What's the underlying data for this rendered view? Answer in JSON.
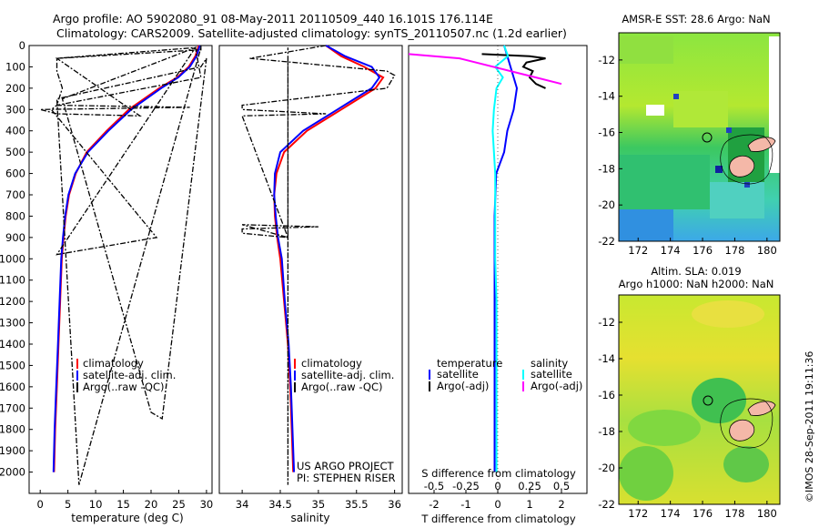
{
  "header": {
    "line1": "Argo profile: AO 5902080_91 08-May-2011 20110509_440 16.101S 176.114E",
    "line2": "Climatology: CARS2009. Satellite-adjusted climatology: synTS_20110507.nc (1.2d earlier)"
  },
  "colors": {
    "climatology": "#ff0000",
    "satellite": "#0000ff",
    "argo": "#000000",
    "s_satellite": "#00ffff",
    "s_argo": "#ff00ff",
    "land": "#f4b8a8"
  },
  "chart_data": [
    {
      "id": "temperature",
      "type": "line",
      "xlabel": "temperature (deg C)",
      "ylabel": "",
      "xlim": [
        -2,
        31
      ],
      "ylim": [
        2100,
        0
      ],
      "xticks": [
        0,
        5,
        10,
        15,
        20,
        25,
        30
      ],
      "yticks": [
        0,
        100,
        200,
        300,
        400,
        500,
        600,
        700,
        800,
        900,
        1000,
        1100,
        1200,
        1300,
        1400,
        1500,
        1600,
        1700,
        1800,
        1900,
        2000
      ],
      "legend": [
        "climatology",
        "satellite-adj. clim.",
        "Argo(..raw -QC)"
      ],
      "series": [
        {
          "name": "climatology",
          "depth": [
            0,
            50,
            100,
            150,
            200,
            300,
            400,
            500,
            600,
            700,
            800,
            900,
            1000,
            1200,
            1400,
            1600,
            1800,
            2000
          ],
          "values": [
            28.6,
            28.0,
            26.8,
            24.7,
            21.5,
            16.0,
            12.0,
            8.4,
            6.4,
            5.2,
            4.6,
            4.2,
            3.9,
            3.6,
            3.3,
            3.0,
            2.7,
            2.5
          ]
        },
        {
          "name": "satellite-adj. clim.",
          "depth": [
            0,
            50,
            100,
            150,
            200,
            300,
            400,
            500,
            600,
            700,
            800,
            900,
            1000,
            1200,
            1400,
            1600,
            1800,
            2000
          ],
          "values": [
            28.8,
            28.2,
            27.0,
            24.9,
            21.8,
            16.4,
            12.3,
            8.6,
            6.3,
            5.1,
            4.5,
            4.1,
            3.8,
            3.5,
            3.2,
            2.9,
            2.6,
            2.4
          ]
        },
        {
          "name": "Argo(..raw -QC)",
          "depth": [
            0,
            20,
            60,
            120,
            200,
            280,
            290,
            300,
            320,
            330,
            60,
            10,
            150,
            280,
            300,
            900,
            980,
            10,
            250,
            1720,
            1750,
            60,
            100,
            250,
            2060,
            10
          ],
          "values": [
            29,
            29,
            3,
            3,
            4,
            3,
            27,
            0,
            3,
            18,
            3,
            28,
            29,
            3,
            2,
            21,
            3,
            28,
            4,
            20,
            22,
            30,
            29,
            3,
            7,
            29
          ]
        }
      ]
    },
    {
      "id": "salinity",
      "type": "line",
      "xlabel": "salinity",
      "xlim": [
        33.7,
        36.1
      ],
      "ylim": [
        2100,
        0
      ],
      "xticks": [
        34,
        34.5,
        35,
        35.5,
        36
      ],
      "legend": [
        "climatology",
        "satellite-adj. clim.",
        "Argo(..raw -QC)"
      ],
      "annotation": [
        "US ARGO PROJECT",
        "PI: STEPHEN RISER"
      ],
      "series": [
        {
          "name": "climatology",
          "depth": [
            0,
            50,
            100,
            150,
            200,
            300,
            400,
            500,
            600,
            700,
            800,
            900,
            1000,
            1200,
            1400,
            1600,
            1800,
            2000
          ],
          "values": [
            35.1,
            35.3,
            35.6,
            35.85,
            35.75,
            35.3,
            34.85,
            34.55,
            34.45,
            34.42,
            34.43,
            34.46,
            34.5,
            34.55,
            34.6,
            34.63,
            34.65,
            34.67
          ]
        },
        {
          "name": "satellite-adj. clim.",
          "depth": [
            0,
            50,
            100,
            150,
            200,
            300,
            400,
            500,
            600,
            700,
            800,
            900,
            1000,
            1200,
            1400,
            1600,
            1800,
            2000
          ],
          "values": [
            35.1,
            35.35,
            35.7,
            35.8,
            35.7,
            35.25,
            34.8,
            34.5,
            34.43,
            34.42,
            34.44,
            34.47,
            34.52,
            34.56,
            34.61,
            34.64,
            34.66,
            34.68
          ]
        },
        {
          "name": "Argo(..raw -QC)",
          "depth": [
            0,
            60,
            120,
            140,
            200,
            280,
            300,
            320,
            330,
            900,
            840,
            850,
            860,
            880,
            900,
            60,
            80,
            100,
            2060,
            10
          ],
          "values": [
            35.1,
            34.1,
            35.9,
            36.0,
            35.9,
            34.0,
            34.0,
            35.1,
            34.0,
            34.6,
            34.0,
            35.0,
            34.0,
            34.0,
            34.6,
            34.6,
            34.6,
            34.6,
            34.6,
            34.6
          ]
        }
      ]
    },
    {
      "id": "difference",
      "type": "line",
      "xlabel": "T difference from climatology",
      "top_label": "S difference from climatology",
      "xlim": [
        -2.8,
        2.8
      ],
      "ylim": [
        2100,
        0
      ],
      "xticks": [
        -2,
        -1,
        0,
        1,
        2
      ],
      "xtick_labels": [
        "-2",
        "-1",
        "0",
        "1",
        "2"
      ],
      "sticks": [
        -0.5,
        -0.25,
        0,
        0.25,
        0.5
      ],
      "stick_labels": [
        "-0.5",
        "-0.25",
        "0",
        "0.25",
        "0.5"
      ],
      "legend_temperature": [
        "temperature",
        "satellite",
        "Argo(-adj)"
      ],
      "legend_salinity": [
        "salinity",
        "satellite",
        "Argo(-adj)"
      ],
      "series": [
        {
          "name": "T satellite",
          "depth": [
            0,
            50,
            100,
            150,
            200,
            300,
            400,
            500,
            600,
            800,
            1000,
            1200,
            1400,
            1600,
            1800,
            2000
          ],
          "values": [
            0.2,
            0.3,
            0.4,
            0.5,
            0.6,
            0.5,
            0.3,
            0.2,
            -0.05,
            -0.1,
            -0.1,
            -0.1,
            -0.1,
            -0.1,
            -0.1,
            -0.1
          ]
        },
        {
          "name": "T Argo(-adj)",
          "depth": [
            40,
            50,
            60,
            80,
            100,
            120,
            150,
            180,
            200
          ],
          "values": [
            -0.5,
            1.0,
            1.5,
            0.9,
            0.8,
            1.1,
            1.0,
            1.2,
            1.5
          ]
        },
        {
          "name": "S satellite",
          "depth": [
            0,
            50,
            100,
            150,
            200,
            300,
            400,
            500,
            600,
            800,
            1000,
            1200,
            1400,
            1600,
            1800,
            2000
          ],
          "values": [
            0.05,
            0.08,
            -0.02,
            0.04,
            -0.01,
            -0.03,
            -0.04,
            -0.03,
            -0.02,
            -0.02,
            -0.02,
            -0.01,
            -0.01,
            -0.01,
            -0.01,
            -0.01
          ]
        },
        {
          "name": "S Argo(-adj)",
          "depth": [
            40,
            60,
            150,
            180
          ],
          "values": [
            -0.7,
            -0.3,
            0.3,
            0.5
          ]
        }
      ]
    },
    {
      "id": "sst_map",
      "type": "heatmap",
      "title": "AMSR-E SST: 28.6 Argo: NaN",
      "xticks": [
        172,
        174,
        176,
        178,
        180
      ],
      "yticks": [
        -12,
        -14,
        -16,
        -18,
        -20,
        -22
      ],
      "xlim": [
        170.8,
        180.8
      ],
      "ylim": [
        -22,
        -10.5
      ],
      "float_position": [
        176.114,
        -16.101
      ]
    },
    {
      "id": "sla_map",
      "type": "heatmap",
      "title1": "Altim. SLA: 0.019",
      "title2": "Argo h1000: NaN h2000: NaN",
      "xticks": [
        172,
        174,
        176,
        178,
        180
      ],
      "yticks": [
        -12,
        -14,
        -16,
        -18,
        -20,
        -22
      ],
      "xlim": [
        170.8,
        180.8
      ],
      "ylim": [
        -22,
        -10.5
      ],
      "float_position": [
        176.114,
        -16.101
      ]
    }
  ],
  "footer": {
    "stamp": "©IMOS 28-Sep-2011 19:11:36"
  }
}
